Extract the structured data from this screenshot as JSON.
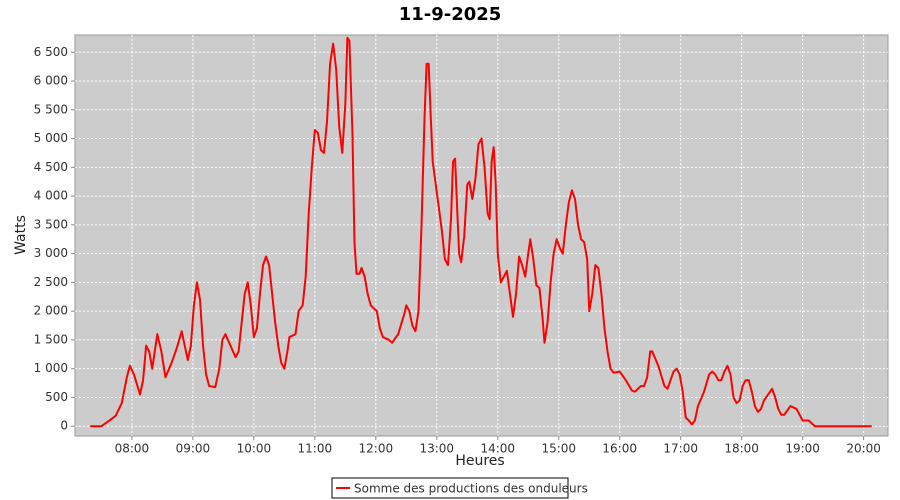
{
  "chart_data": {
    "type": "line",
    "title": "11-9-2025",
    "x_label": "Heures",
    "y_label": "Watts",
    "x": [
      "07:19",
      "07:30",
      "07:38",
      "07:44",
      "07:50",
      "07:55",
      "07:58",
      "08:02",
      "08:08",
      "08:11",
      "08:14",
      "08:17",
      "08:20",
      "08:25",
      "08:29",
      "08:33",
      "08:39",
      "08:44",
      "08:49",
      "08:52",
      "08:55",
      "08:58",
      "09:01",
      "09:04",
      "09:07",
      "09:10",
      "09:13",
      "09:16",
      "09:22",
      "09:26",
      "09:29",
      "09:32",
      "09:37",
      "09:42",
      "09:45",
      "09:48",
      "09:51",
      "09:54",
      "09:57",
      "10:00",
      "10:03",
      "10:06",
      "10:09",
      "10:12",
      "10:15",
      "10:18",
      "10:21",
      "10:24",
      "10:27",
      "10:30",
      "10:33",
      "10:35",
      "10:41",
      "10:44",
      "10:48",
      "10:51",
      "10:54",
      "10:57",
      "11:00",
      "11:03",
      "11:06",
      "11:09",
      "11:12",
      "11:15",
      "11:18",
      "11:21",
      "11:24",
      "11:27",
      "11:30",
      "11:32",
      "11:34",
      "11:37",
      "11:39",
      "11:41",
      "11:44",
      "11:46",
      "11:49",
      "11:52",
      "11:55",
      "12:01",
      "12:04",
      "12:07",
      "12:13",
      "12:16",
      "12:22",
      "12:28",
      "12:30",
      "12:33",
      "12:36",
      "12:39",
      "12:42",
      "12:45",
      "12:48",
      "12:50",
      "12:52",
      "12:54",
      "12:56",
      "12:59",
      "13:02",
      "13:05",
      "13:08",
      "13:11",
      "13:14",
      "13:16",
      "13:18",
      "13:20",
      "13:22",
      "13:24",
      "13:27",
      "13:30",
      "13:32",
      "13:35",
      "13:38",
      "13:41",
      "13:44",
      "13:47",
      "13:50",
      "13:52",
      "13:54",
      "13:56",
      "13:58",
      "14:00",
      "14:03",
      "14:09",
      "14:12",
      "14:15",
      "14:18",
      "14:21",
      "14:24",
      "14:27",
      "14:30",
      "14:32",
      "14:35",
      "14:38",
      "14:41",
      "14:44",
      "14:46",
      "14:49",
      "14:52",
      "14:55",
      "14:58",
      "15:01",
      "15:04",
      "15:07",
      "15:10",
      "15:13",
      "15:16",
      "15:19",
      "15:22",
      "15:25",
      "15:28",
      "15:30",
      "15:33",
      "15:36",
      "15:39",
      "15:42",
      "15:45",
      "15:48",
      "15:51",
      "15:54",
      "16:00",
      "16:06",
      "16:12",
      "16:15",
      "16:21",
      "16:24",
      "16:27",
      "16:30",
      "16:32",
      "16:38",
      "16:44",
      "16:47",
      "16:53",
      "16:56",
      "16:59",
      "17:02",
      "17:05",
      "17:08",
      "17:11",
      "17:14",
      "17:17",
      "17:23",
      "17:28",
      "17:31",
      "17:34",
      "17:37",
      "17:40",
      "17:43",
      "17:46",
      "17:49",
      "17:52",
      "17:55",
      "17:58",
      "18:01",
      "18:04",
      "18:07",
      "18:10",
      "18:13",
      "18:16",
      "18:19",
      "18:22",
      "18:28",
      "18:30",
      "18:33",
      "18:36",
      "18:39",
      "18:42",
      "18:48",
      "18:54",
      "19:00",
      "19:06",
      "19:12",
      "19:36",
      "20:08"
    ],
    "series": [
      {
        "name": "Somme des productions des onduleurs",
        "color": "#ff0000",
        "values": [
          0,
          0,
          100,
          180,
          400,
          850,
          1050,
          900,
          550,
          800,
          1400,
          1300,
          1000,
          1600,
          1300,
          850,
          1100,
          1350,
          1650,
          1400,
          1150,
          1400,
          2100,
          2500,
          2200,
          1400,
          900,
          700,
          680,
          1000,
          1500,
          1600,
          1400,
          1200,
          1300,
          1800,
          2300,
          2500,
          2100,
          1550,
          1700,
          2300,
          2800,
          2950,
          2800,
          2300,
          1800,
          1400,
          1100,
          1000,
          1300,
          1550,
          1600,
          2000,
          2100,
          2600,
          3700,
          4500,
          5150,
          5100,
          4800,
          4750,
          5300,
          6300,
          6650,
          6200,
          5200,
          4750,
          5600,
          6750,
          6700,
          5100,
          3200,
          2650,
          2650,
          2750,
          2600,
          2300,
          2100,
          2000,
          1700,
          1550,
          1500,
          1450,
          1600,
          1950,
          2100,
          2000,
          1750,
          1650,
          2000,
          3500,
          5400,
          6300,
          6300,
          5400,
          4600,
          4200,
          3800,
          3400,
          2900,
          2800,
          3600,
          4600,
          4650,
          3800,
          3000,
          2850,
          3300,
          4200,
          4250,
          3950,
          4300,
          4900,
          5000,
          4500,
          3700,
          3600,
          4600,
          4850,
          4200,
          3000,
          2500,
          2700,
          2300,
          1900,
          2300,
          2950,
          2800,
          2600,
          3000,
          3250,
          2900,
          2450,
          2400,
          1900,
          1450,
          1800,
          2500,
          3000,
          3250,
          3100,
          3000,
          3500,
          3900,
          4100,
          3950,
          3500,
          3250,
          3200,
          2900,
          2000,
          2300,
          2800,
          2750,
          2300,
          1700,
          1300,
          1000,
          930,
          950,
          800,
          620,
          600,
          700,
          700,
          850,
          1300,
          1300,
          1050,
          700,
          650,
          950,
          1000,
          900,
          600,
          150,
          100,
          30,
          100,
          350,
          600,
          900,
          950,
          900,
          800,
          800,
          950,
          1050,
          900,
          500,
          400,
          450,
          700,
          800,
          800,
          600,
          350,
          250,
          300,
          450,
          600,
          650,
          500,
          300,
          200,
          200,
          350,
          300,
          100,
          100,
          0,
          0,
          0
        ]
      }
    ],
    "xlim": [
      "07:04",
      "20:24"
    ],
    "xticks": [
      "08:00",
      "09:00",
      "10:00",
      "11:00",
      "12:00",
      "13:00",
      "14:00",
      "15:00",
      "16:00",
      "17:00",
      "18:00",
      "19:00",
      "20:00"
    ],
    "ylim": [
      -170,
      6800
    ],
    "yticks": [
      0,
      500,
      {
        "value": 1000,
        "label": "1 000"
      },
      {
        "value": 1500,
        "label": "1 500"
      },
      {
        "value": 2000,
        "label": "2 000"
      },
      {
        "value": 2500,
        "label": "2 500"
      },
      {
        "value": 3000,
        "label": "3 000"
      },
      {
        "value": 3500,
        "label": "3 500"
      },
      {
        "value": 4000,
        "label": "4 000"
      },
      {
        "value": 4500,
        "label": "4 500"
      },
      {
        "value": 5000,
        "label": "5 000"
      },
      {
        "value": 5500,
        "label": "5 500"
      },
      {
        "value": 6000,
        "label": "6 000"
      },
      {
        "value": 6500,
        "label": "6 500"
      }
    ],
    "grid": true,
    "background": "#cccccc",
    "grid_color": "#ffffff",
    "legend": "bottom"
  }
}
